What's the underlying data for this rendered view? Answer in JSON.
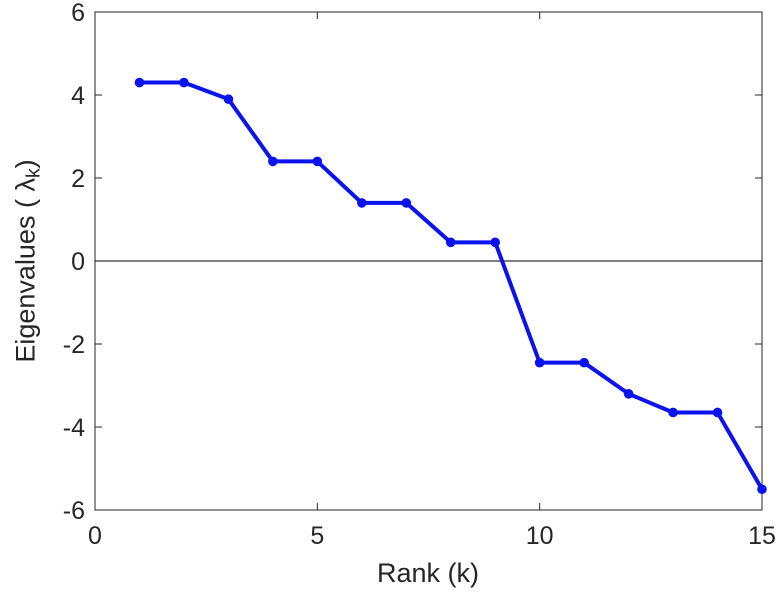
{
  "chart_data": {
    "type": "line",
    "title": "",
    "xlabel": "Rank (k)",
    "ylabel": "Eigenvalues ( λk )",
    "ylabel_parts": {
      "prefix": "Eigenvalues ( ",
      "symbol": "λ",
      "subscript": "k",
      "suffix": ")"
    },
    "x": [
      1,
      2,
      3,
      4,
      5,
      6,
      7,
      8,
      9,
      10,
      11,
      12,
      13,
      14,
      15
    ],
    "y": [
      4.3,
      4.3,
      3.9,
      2.4,
      2.4,
      1.4,
      1.4,
      0.45,
      0.45,
      -2.45,
      -2.45,
      -3.2,
      -3.65,
      -3.65,
      -5.5
    ],
    "series_name": "eigenvalues",
    "xlim": [
      0,
      15
    ],
    "ylim": [
      -6,
      6
    ],
    "x_ticks": [
      0,
      5,
      10,
      15
    ],
    "y_ticks": [
      -6,
      -4,
      -2,
      0,
      2,
      4,
      6
    ],
    "line_color": "#0a12ee",
    "marker": "circle",
    "marker_color": "#0a12ee",
    "zero_line": true,
    "zero_line_color": "#000000",
    "axis_color": "#262626",
    "grid": false,
    "legend": false
  }
}
